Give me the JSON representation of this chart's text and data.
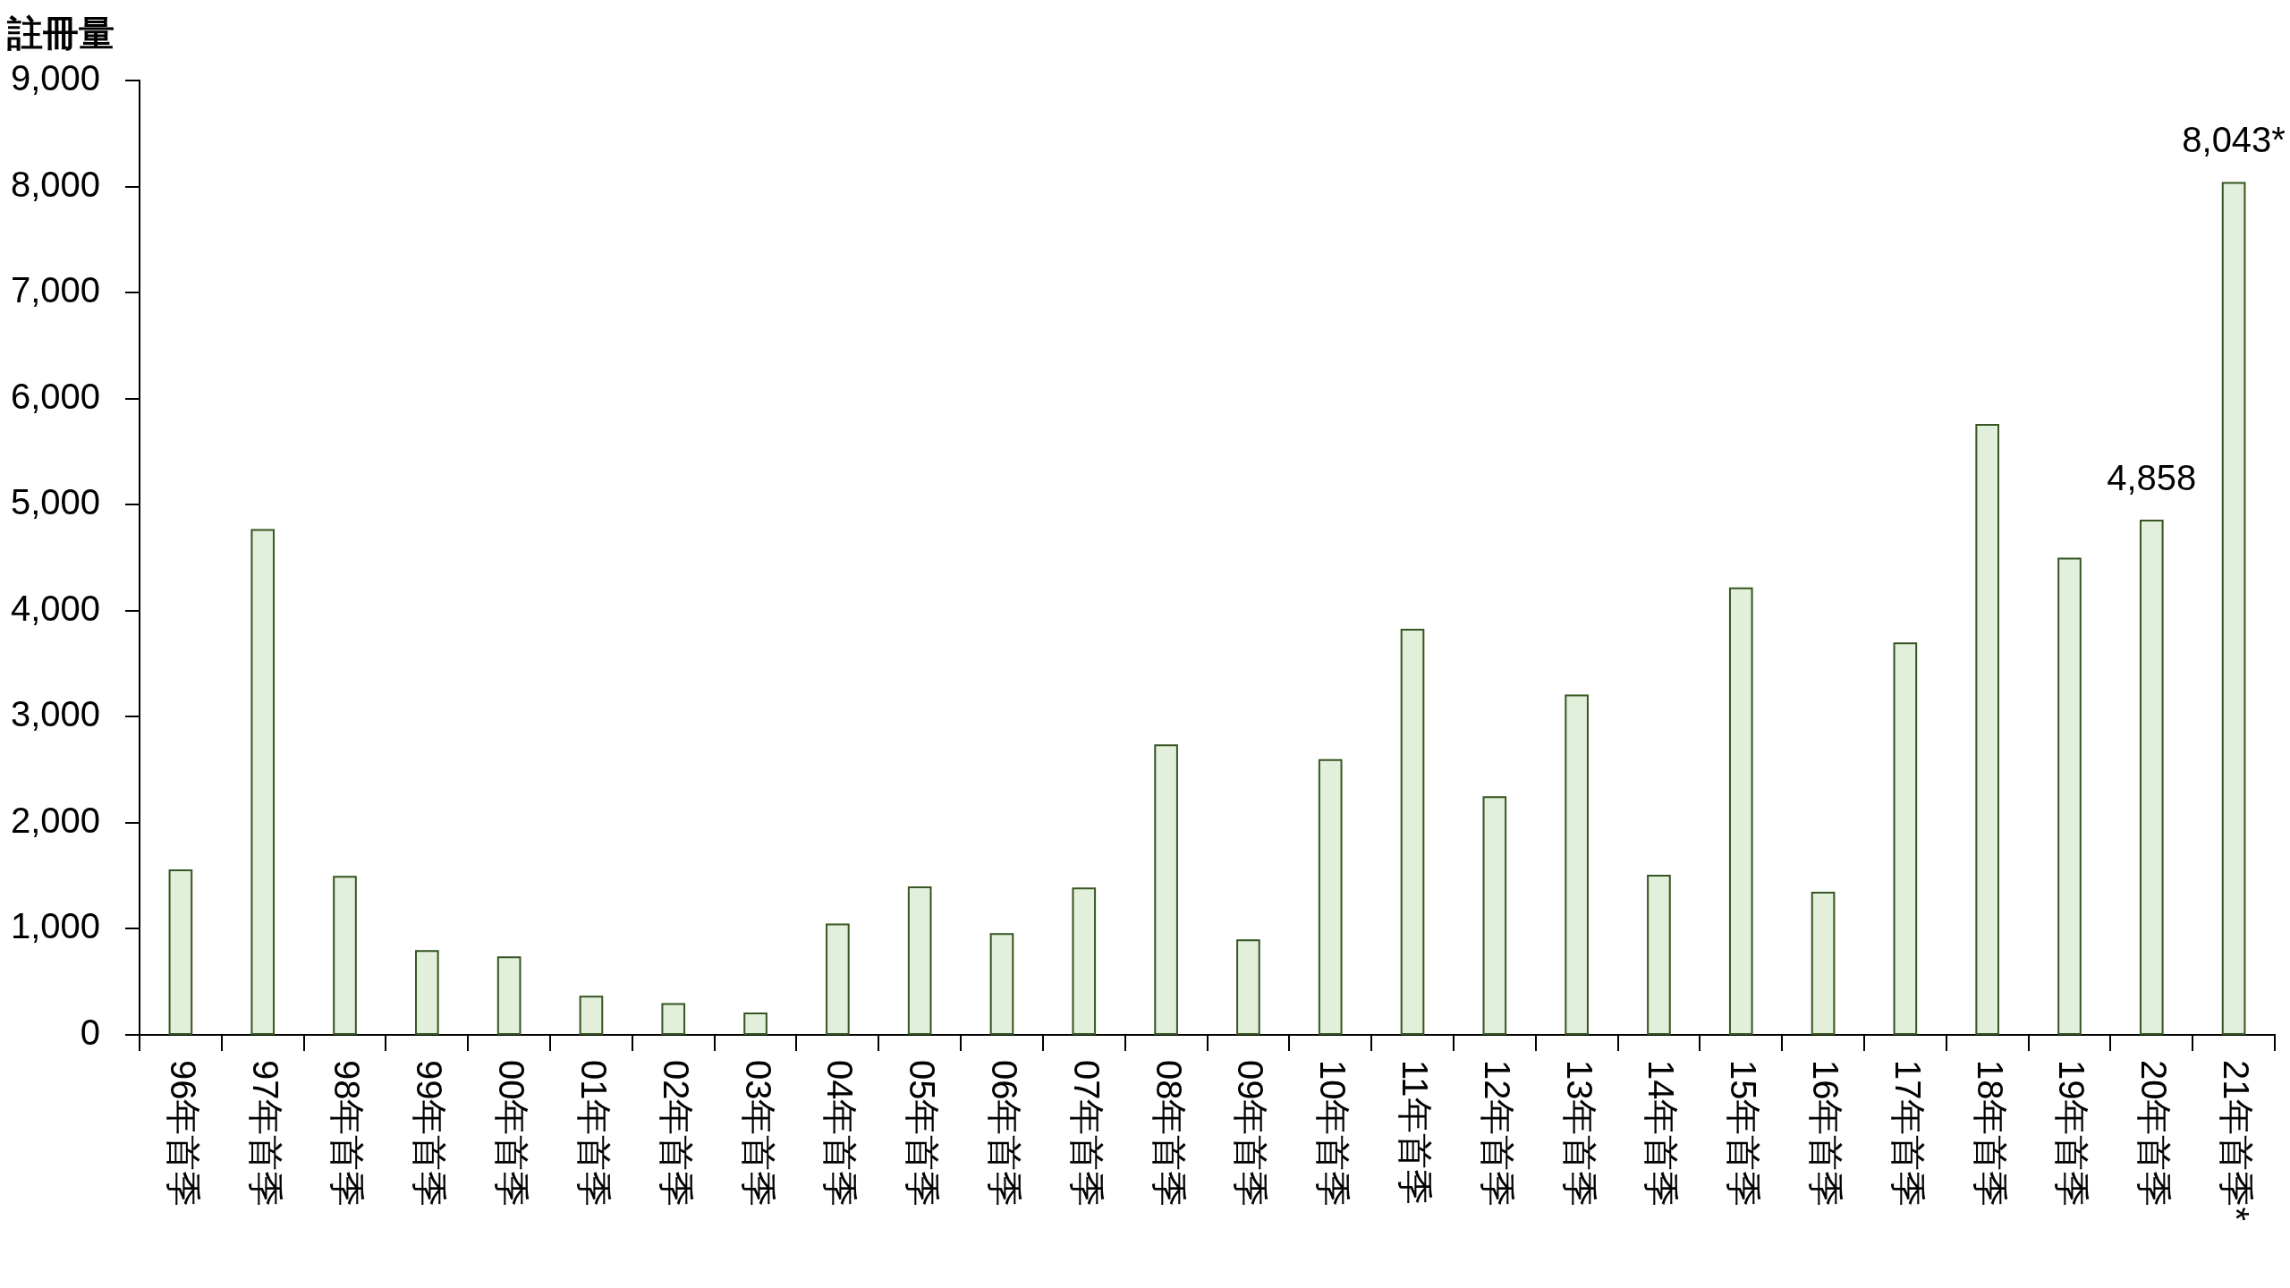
{
  "chart_data": {
    "type": "bar",
    "ylabel": "註冊量",
    "categories": [
      "96年首季",
      "97年首季",
      "98年首季",
      "99年首季",
      "00年首季",
      "01年首季",
      "02年首季",
      "03年首季",
      "04年首季",
      "05年首季",
      "06年首季",
      "07年首季",
      "08年首季",
      "09年首季",
      "10年首季",
      "11年首季",
      "12年首季",
      "13年首季",
      "14年首季",
      "15年首季",
      "16年首季",
      "17年首季",
      "18年首季",
      "19年首季",
      "20年首季",
      "21年首季*"
    ],
    "values": [
      1560,
      4770,
      1500,
      800,
      740,
      370,
      300,
      210,
      1050,
      1400,
      960,
      1390,
      2740,
      900,
      2600,
      3830,
      2250,
      3210,
      1510,
      4220,
      1350,
      3700,
      5760,
      4500,
      4858,
      8043
    ],
    "value_labels": [
      null,
      null,
      null,
      null,
      null,
      null,
      null,
      null,
      null,
      null,
      null,
      null,
      null,
      null,
      null,
      null,
      null,
      null,
      null,
      null,
      null,
      null,
      null,
      null,
      "4,858",
      "8,043*"
    ],
    "color": "#e2efda",
    "ylim": [
      0,
      9000
    ],
    "yticks": [
      0,
      {
        "value": 1000,
        "label": "1,000"
      },
      {
        "value": 2000,
        "label": "2,000"
      },
      {
        "value": 3000,
        "label": "3,000"
      },
      {
        "value": 4000,
        "label": "4,000"
      },
      {
        "value": 5000,
        "label": "5,000"
      },
      {
        "value": 6000,
        "label": "6,000"
      },
      {
        "value": 7000,
        "label": "7,000"
      },
      {
        "value": 8000,
        "label": "8,000"
      },
      {
        "value": 9000,
        "label": "9,000"
      }
    ],
    "grid": false,
    "legend": false
  }
}
